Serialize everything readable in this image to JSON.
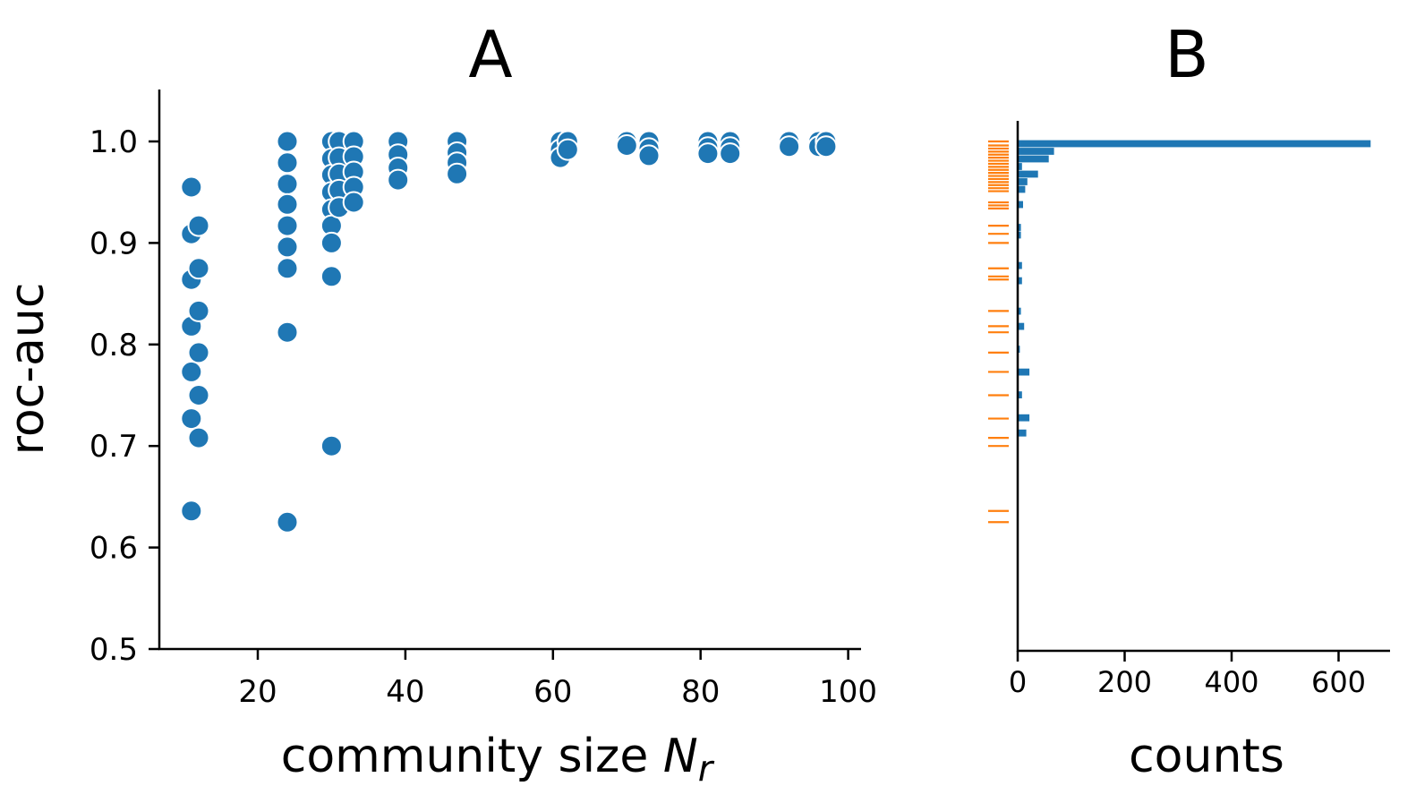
{
  "chart_data": [
    {
      "type": "scatter",
      "title": "A",
      "xlabel": "community size",
      "xlabel_symbol": "N",
      "xlabel_subscript": "r",
      "ylabel": "roc-auc",
      "xlim": [
        6.5,
        101.5
      ],
      "ylim": [
        0.5,
        1.05
      ],
      "xticks": [
        20,
        40,
        60,
        80,
        100
      ],
      "yticks": [
        0.5,
        0.6,
        0.7,
        0.8,
        0.9,
        1.0
      ],
      "xtick_labels": [
        "20",
        "40",
        "60",
        "80",
        "100"
      ],
      "ytick_labels": [
        "0.5",
        "0.6",
        "0.7",
        "0.8",
        "0.9",
        "1.0"
      ],
      "color": "#1f77b4",
      "points": [
        [
          11,
          0.955
        ],
        [
          11,
          0.909
        ],
        [
          11,
          0.864
        ],
        [
          11,
          0.818
        ],
        [
          11,
          0.773
        ],
        [
          11,
          0.727
        ],
        [
          11,
          0.636
        ],
        [
          12,
          0.917
        ],
        [
          12,
          0.875
        ],
        [
          12,
          0.833
        ],
        [
          12,
          0.792
        ],
        [
          12,
          0.75
        ],
        [
          12,
          0.708
        ],
        [
          24,
          1.0
        ],
        [
          24,
          0.979
        ],
        [
          24,
          0.958
        ],
        [
          24,
          0.938
        ],
        [
          24,
          0.917
        ],
        [
          24,
          0.896
        ],
        [
          24,
          0.875
        ],
        [
          24,
          0.812
        ],
        [
          24,
          0.625
        ],
        [
          30,
          1.0
        ],
        [
          30,
          0.983
        ],
        [
          30,
          0.967
        ],
        [
          30,
          0.95
        ],
        [
          30,
          0.933
        ],
        [
          30,
          0.917
        ],
        [
          30,
          0.9
        ],
        [
          30,
          0.867
        ],
        [
          30,
          0.7
        ],
        [
          31,
          1.0
        ],
        [
          31,
          0.984
        ],
        [
          31,
          0.968
        ],
        [
          31,
          0.952
        ],
        [
          31,
          0.935
        ],
        [
          33,
          1.0
        ],
        [
          33,
          0.985
        ],
        [
          33,
          0.97
        ],
        [
          33,
          0.955
        ],
        [
          33,
          0.94
        ],
        [
          39,
          1.0
        ],
        [
          39,
          0.987
        ],
        [
          39,
          0.974
        ],
        [
          39,
          0.962
        ],
        [
          47,
          1.0
        ],
        [
          47,
          0.989
        ],
        [
          47,
          0.979
        ],
        [
          47,
          0.968
        ],
        [
          61,
          1.0
        ],
        [
          61,
          0.992
        ],
        [
          61,
          0.984
        ],
        [
          62,
          1.0
        ],
        [
          62,
          0.992
        ],
        [
          70,
          1.0
        ],
        [
          70,
          0.996
        ],
        [
          73,
          1.0
        ],
        [
          73,
          0.993
        ],
        [
          73,
          0.986
        ],
        [
          81,
          1.0
        ],
        [
          81,
          0.994
        ],
        [
          81,
          0.988
        ],
        [
          84,
          1.0
        ],
        [
          84,
          0.994
        ],
        [
          84,
          0.988
        ],
        [
          92,
          1.0
        ],
        [
          92,
          0.995
        ],
        [
          96,
          1.0
        ],
        [
          96,
          0.995
        ],
        [
          97,
          1.0
        ],
        [
          97,
          0.995
        ]
      ]
    },
    {
      "type": "bar",
      "orientation": "horizontal",
      "title": "B",
      "xlabel": "counts",
      "ylabel": "",
      "xlim": [
        0,
        690
      ],
      "xticks": [
        0,
        200,
        400,
        600
      ],
      "xtick_labels": [
        "0",
        "200",
        "400",
        "600"
      ],
      "color": "#1f77b4",
      "rug_color": "#ff7f0e",
      "bin_width": 0.0075,
      "bins": [
        {
          "y": 0.9975,
          "count": 660
        },
        {
          "y": 0.99,
          "count": 68
        },
        {
          "y": 0.9825,
          "count": 58
        },
        {
          "y": 0.975,
          "count": 8
        },
        {
          "y": 0.9675,
          "count": 38
        },
        {
          "y": 0.96,
          "count": 18
        },
        {
          "y": 0.9525,
          "count": 14
        },
        {
          "y": 0.9375,
          "count": 10
        },
        {
          "y": 0.915,
          "count": 6
        },
        {
          "y": 0.9075,
          "count": 6
        },
        {
          "y": 0.8775,
          "count": 8
        },
        {
          "y": 0.8625,
          "count": 8
        },
        {
          "y": 0.8325,
          "count": 6
        },
        {
          "y": 0.8175,
          "count": 12
        },
        {
          "y": 0.795,
          "count": 4
        },
        {
          "y": 0.7725,
          "count": 22
        },
        {
          "y": 0.75,
          "count": 8
        },
        {
          "y": 0.7275,
          "count": 22
        },
        {
          "y": 0.7125,
          "count": 16
        }
      ],
      "rug_values": [
        1.0,
        0.996,
        0.993,
        0.99,
        0.987,
        0.984,
        0.981,
        0.978,
        0.975,
        0.972,
        0.969,
        0.966,
        0.963,
        0.96,
        0.957,
        0.954,
        0.951,
        0.94,
        0.937,
        0.934,
        0.917,
        0.909,
        0.9,
        0.875,
        0.867,
        0.864,
        0.833,
        0.818,
        0.812,
        0.792,
        0.773,
        0.75,
        0.727,
        0.708,
        0.7,
        0.636,
        0.625
      ]
    }
  ]
}
